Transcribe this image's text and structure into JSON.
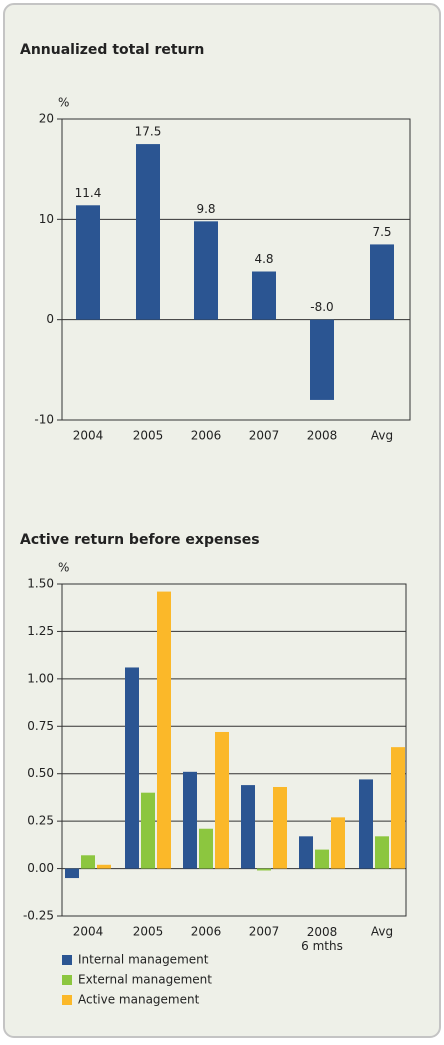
{
  "chart_data": [
    {
      "type": "bar",
      "title": "Annualized total return",
      "y_axis_label": "%",
      "categories": [
        "2004",
        "2005",
        "2006",
        "2007",
        "2008",
        "Avg"
      ],
      "values": [
        11.4,
        17.5,
        9.8,
        4.8,
        -8.0,
        7.5
      ],
      "value_labels": [
        "11.4",
        "17.5",
        "9.8",
        "4.8",
        "-8.0",
        "7.5"
      ],
      "color": "#2b5592",
      "ylim": [
        -10,
        20
      ],
      "yticks": [
        -10,
        0,
        10,
        20
      ],
      "grid": true
    },
    {
      "type": "bar",
      "title": "Active return before expenses",
      "y_axis_label": "%",
      "categories": [
        "2004",
        "2005",
        "2006",
        "2007",
        "2008\n6 mths",
        "Avg"
      ],
      "series": [
        {
          "name": "Internal management",
          "color": "#2b5592",
          "values": [
            -0.05,
            1.06,
            0.51,
            0.44,
            0.17,
            0.47
          ]
        },
        {
          "name": "External management",
          "color": "#8cc63f",
          "values": [
            0.07,
            0.4,
            0.21,
            -0.01,
            0.1,
            0.17
          ]
        },
        {
          "name": "Active management",
          "color": "#fbb829",
          "values": [
            0.02,
            1.46,
            0.72,
            0.43,
            0.27,
            0.64
          ]
        }
      ],
      "ylim": [
        -0.25,
        1.5
      ],
      "yticks": [
        -0.25,
        {
          "value": 0,
          "label": "0.00"
        },
        0.25,
        {
          "value": 0.5,
          "label": "0.50"
        },
        0.75,
        {
          "value": 1,
          "label": "1.00"
        },
        1.25,
        {
          "value": 1.5,
          "label": "1.50"
        }
      ],
      "grid": true
    }
  ]
}
